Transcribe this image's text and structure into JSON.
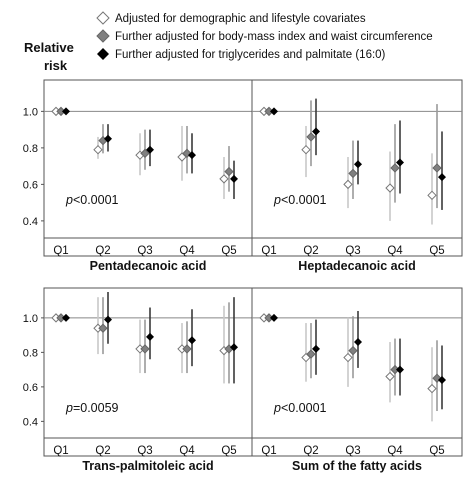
{
  "y_axis_label": [
    "Relative",
    "risk"
  ],
  "legend": [
    {
      "label": "Adjusted for demographic and lifestyle covariates",
      "marker": "open-diamond",
      "color": "#ffffff"
    },
    {
      "label": "Further adjusted for body-mass index and waist circumference",
      "marker": "diamond",
      "color": "#808080"
    },
    {
      "label": "Further adjusted for triglycerides and palmitate (16:0)",
      "marker": "diamond",
      "color": "#000000"
    }
  ],
  "colors": {
    "ci_model1": "#c8c8c8",
    "ci_model2": "#9a9a9a",
    "ci_model3": "#3a3a3a",
    "reference_line": "#888888",
    "border": "#555555"
  },
  "chart_data": [
    {
      "type": "scatter",
      "title": "Pentadecanoic acid",
      "annotation_prefix": "p",
      "annotation_value": "<0.0001",
      "categories": [
        "Q1",
        "Q2",
        "Q3",
        "Q4",
        "Q5"
      ],
      "ylim": [
        0.35,
        1.15
      ],
      "yticks": [
        "0.4",
        "0.6",
        "0.8",
        "1.0"
      ],
      "reference": 1.0,
      "series": [
        {
          "values": [
            1.0,
            0.79,
            0.76,
            0.75,
            0.63
          ],
          "lower": [
            1.0,
            0.74,
            0.65,
            0.62,
            0.52
          ],
          "upper": [
            1.0,
            0.86,
            0.88,
            0.92,
            0.75
          ]
        },
        {
          "values": [
            1.0,
            0.84,
            0.77,
            0.77,
            0.67
          ],
          "lower": [
            1.0,
            0.77,
            0.68,
            0.66,
            0.56
          ],
          "upper": [
            1.0,
            0.93,
            0.9,
            0.92,
            0.81
          ]
        },
        {
          "values": [
            1.0,
            0.85,
            0.79,
            0.76,
            0.63
          ],
          "lower": [
            1.0,
            0.78,
            0.7,
            0.66,
            0.52
          ],
          "upper": [
            1.0,
            0.93,
            0.9,
            0.88,
            0.73
          ]
        }
      ]
    },
    {
      "type": "scatter",
      "title": "Heptadecanoic acid",
      "annotation_prefix": "p",
      "annotation_value": "<0.0001",
      "categories": [
        "Q1",
        "Q2",
        "Q3",
        "Q4",
        "Q5"
      ],
      "ylim": [
        0.35,
        1.15
      ],
      "yticks": [
        "0.4",
        "0.6",
        "0.8",
        "1.0"
      ],
      "reference": 1.0,
      "series": [
        {
          "values": [
            1.0,
            0.79,
            0.6,
            0.58,
            0.54
          ],
          "lower": [
            1.0,
            0.64,
            0.47,
            0.4,
            0.38
          ],
          "upper": [
            1.0,
            0.92,
            0.75,
            0.78,
            0.77
          ]
        },
        {
          "values": [
            1.0,
            0.86,
            0.66,
            0.69,
            0.69
          ],
          "lower": [
            1.0,
            0.7,
            0.52,
            0.5,
            0.47
          ],
          "upper": [
            1.0,
            1.06,
            0.84,
            0.93,
            1.04
          ]
        },
        {
          "values": [
            1.0,
            0.89,
            0.71,
            0.72,
            0.64
          ],
          "lower": [
            1.0,
            0.76,
            0.6,
            0.55,
            0.46
          ],
          "upper": [
            1.0,
            1.07,
            0.84,
            0.95,
            0.89
          ]
        }
      ]
    },
    {
      "type": "scatter",
      "title": "Trans-palmitoleic acid",
      "annotation_prefix": "p",
      "annotation_value": "=0.0059",
      "categories": [
        "Q1",
        "Q2",
        "Q3",
        "Q4",
        "Q5"
      ],
      "ylim": [
        0.35,
        1.15
      ],
      "yticks": [
        "0.4",
        "0.6",
        "0.8",
        "1.0"
      ],
      "reference": 1.0,
      "series": [
        {
          "values": [
            1.0,
            0.94,
            0.82,
            0.82,
            0.81
          ],
          "lower": [
            1.0,
            0.79,
            0.68,
            0.68,
            0.62
          ],
          "upper": [
            1.0,
            1.12,
            0.99,
            0.97,
            1.07
          ]
        },
        {
          "values": [
            1.0,
            0.94,
            0.82,
            0.82,
            0.82
          ],
          "lower": [
            1.0,
            0.79,
            0.68,
            0.68,
            0.62
          ],
          "upper": [
            1.0,
            1.12,
            0.99,
            0.98,
            1.09
          ]
        },
        {
          "values": [
            1.0,
            0.99,
            0.89,
            0.87,
            0.83
          ],
          "lower": [
            1.0,
            0.85,
            0.76,
            0.72,
            0.62
          ],
          "upper": [
            1.0,
            1.15,
            1.06,
            1.05,
            1.12
          ]
        }
      ]
    },
    {
      "type": "scatter",
      "title": "Sum of the fatty acids",
      "annotation_prefix": "p",
      "annotation_value": "<0.0001",
      "categories": [
        "Q1",
        "Q2",
        "Q3",
        "Q4",
        "Q5"
      ],
      "ylim": [
        0.35,
        1.15
      ],
      "yticks": [
        "0.4",
        "0.6",
        "0.8",
        "1.0"
      ],
      "reference": 1.0,
      "series": [
        {
          "values": [
            1.0,
            0.77,
            0.77,
            0.66,
            0.59
          ],
          "lower": [
            1.0,
            0.63,
            0.6,
            0.51,
            0.4
          ],
          "upper": [
            1.0,
            0.97,
            1.0,
            0.86,
            0.83
          ]
        },
        {
          "values": [
            1.0,
            0.79,
            0.81,
            0.7,
            0.65
          ],
          "lower": [
            1.0,
            0.65,
            0.65,
            0.55,
            0.46
          ],
          "upper": [
            1.0,
            0.97,
            1.01,
            0.88,
            0.87
          ]
        },
        {
          "values": [
            1.0,
            0.82,
            0.86,
            0.7,
            0.64
          ],
          "lower": [
            1.0,
            0.67,
            0.71,
            0.55,
            0.47
          ],
          "upper": [
            1.0,
            0.99,
            1.04,
            0.88,
            0.84
          ]
        }
      ]
    }
  ]
}
